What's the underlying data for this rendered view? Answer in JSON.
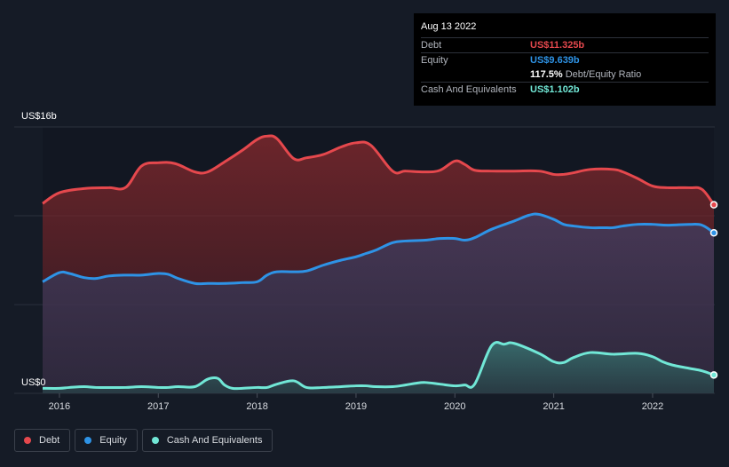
{
  "chart_data": {
    "type": "area",
    "y_axis": {
      "top_label": "US$16b",
      "bottom_label": "US$0",
      "ylim": [
        0,
        16
      ]
    },
    "x_ticks": [
      "2016",
      "2017",
      "2018",
      "2019",
      "2020",
      "2021",
      "2022"
    ],
    "xlim": [
      2015.83,
      2022.62
    ],
    "grid": true,
    "legend_position": "bottom-left",
    "series": [
      {
        "name": "Debt",
        "color": "#e5484d",
        "x": [
          2015.83,
          2016.0,
          2016.25,
          2016.5,
          2016.67,
          2016.83,
          2017.0,
          2017.17,
          2017.37,
          2017.5,
          2017.67,
          2017.85,
          2018.0,
          2018.1,
          2018.2,
          2018.37,
          2018.5,
          2018.67,
          2018.85,
          2019.0,
          2019.15,
          2019.37,
          2019.5,
          2019.7,
          2019.85,
          2020.0,
          2020.1,
          2020.2,
          2020.37,
          2020.6,
          2020.85,
          2021.0,
          2021.1,
          2021.2,
          2021.37,
          2021.6,
          2021.7,
          2021.85,
          2022.0,
          2022.15,
          2022.37,
          2022.5,
          2022.62
        ],
        "values": [
          11.4,
          12.05,
          12.3,
          12.35,
          12.37,
          13.65,
          13.85,
          13.8,
          13.3,
          13.3,
          13.9,
          14.6,
          15.25,
          15.45,
          15.3,
          14.1,
          14.15,
          14.35,
          14.8,
          15.05,
          14.9,
          13.35,
          13.35,
          13.3,
          13.4,
          13.95,
          13.75,
          13.4,
          13.35,
          13.35,
          13.35,
          13.15,
          13.15,
          13.25,
          13.45,
          13.45,
          13.3,
          12.9,
          12.45,
          12.35,
          12.35,
          12.25,
          11.325
        ]
      },
      {
        "name": "Equity",
        "color": "#2e93e6",
        "x": [
          2015.83,
          2016.0,
          2016.1,
          2016.25,
          2016.37,
          2016.5,
          2016.67,
          2016.83,
          2017.0,
          2017.1,
          2017.2,
          2017.37,
          2017.5,
          2017.67,
          2017.85,
          2018.0,
          2018.1,
          2018.2,
          2018.37,
          2018.5,
          2018.67,
          2018.85,
          2019.0,
          2019.1,
          2019.2,
          2019.37,
          2019.5,
          2019.7,
          2019.85,
          2020.0,
          2020.1,
          2020.2,
          2020.37,
          2020.6,
          2020.75,
          2020.85,
          2021.0,
          2021.1,
          2021.2,
          2021.37,
          2021.5,
          2021.6,
          2021.7,
          2021.85,
          2022.0,
          2022.15,
          2022.37,
          2022.5,
          2022.62
        ],
        "values": [
          6.7,
          7.25,
          7.2,
          6.95,
          6.9,
          7.05,
          7.1,
          7.1,
          7.2,
          7.15,
          6.9,
          6.6,
          6.6,
          6.6,
          6.65,
          6.7,
          7.1,
          7.3,
          7.3,
          7.35,
          7.7,
          8.0,
          8.2,
          8.4,
          8.6,
          9.05,
          9.15,
          9.2,
          9.3,
          9.3,
          9.2,
          9.35,
          9.85,
          10.35,
          10.7,
          10.75,
          10.45,
          10.15,
          10.05,
          9.95,
          9.95,
          9.95,
          10.05,
          10.15,
          10.15,
          10.1,
          10.15,
          10.1,
          9.639
        ]
      },
      {
        "name": "Cash And Equivalents",
        "color": "#71e7d6",
        "x": [
          2015.83,
          2016.0,
          2016.1,
          2016.25,
          2016.37,
          2016.5,
          2016.67,
          2016.83,
          2017.0,
          2017.1,
          2017.2,
          2017.37,
          2017.5,
          2017.6,
          2017.67,
          2017.75,
          2017.85,
          2018.0,
          2018.1,
          2018.2,
          2018.37,
          2018.5,
          2018.67,
          2018.85,
          2019.0,
          2019.1,
          2019.2,
          2019.37,
          2019.5,
          2019.6,
          2019.7,
          2019.85,
          2020.0,
          2020.1,
          2020.2,
          2020.37,
          2020.5,
          2020.6,
          2020.85,
          2021.0,
          2021.1,
          2021.2,
          2021.37,
          2021.6,
          2021.85,
          2022.0,
          2022.1,
          2022.2,
          2022.37,
          2022.5,
          2022.62
        ],
        "values": [
          0.3,
          0.3,
          0.35,
          0.4,
          0.35,
          0.35,
          0.35,
          0.4,
          0.35,
          0.35,
          0.4,
          0.4,
          0.85,
          0.9,
          0.5,
          0.3,
          0.3,
          0.35,
          0.35,
          0.55,
          0.75,
          0.35,
          0.35,
          0.4,
          0.45,
          0.45,
          0.4,
          0.4,
          0.5,
          0.6,
          0.65,
          0.55,
          0.45,
          0.5,
          0.55,
          2.85,
          2.95,
          3.0,
          2.4,
          1.9,
          1.85,
          2.15,
          2.45,
          2.35,
          2.4,
          2.2,
          1.9,
          1.7,
          1.5,
          1.35,
          1.102
        ]
      }
    ]
  },
  "tooltip": {
    "date": "Aug 13 2022",
    "rows": [
      {
        "label": "Debt",
        "value": "US$11.325b",
        "color": "#e5484d"
      },
      {
        "label": "Equity",
        "value": "US$9.639b",
        "color": "#2e93e6"
      },
      {
        "label": "",
        "value": "117.5%",
        "value_suffix": "Debt/Equity Ratio",
        "color": "#ffffff"
      },
      {
        "label": "Cash And Equivalents",
        "value": "US$1.102b",
        "color": "#71e7d6"
      }
    ]
  },
  "legend": [
    {
      "label": "Debt",
      "color": "#e5484d"
    },
    {
      "label": "Equity",
      "color": "#2e93e6"
    },
    {
      "label": "Cash And Equivalents",
      "color": "#71e7d6"
    }
  ]
}
